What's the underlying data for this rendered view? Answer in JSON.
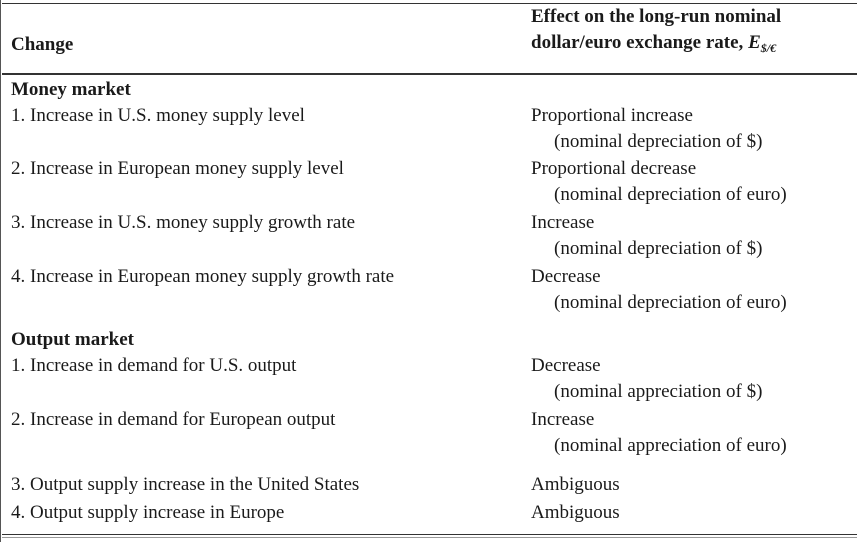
{
  "header": {
    "change_label": "Change",
    "effect_line1": "Effect on the long-run nominal",
    "effect_line2": "dollar/euro exchange rate, ",
    "effect_symbol": "E",
    "effect_subscript": "$/€"
  },
  "sections": [
    {
      "title": "Money market",
      "rows": [
        {
          "change": "1. Increase in U.S. money supply level",
          "effect": "Proportional increase",
          "note": "(nominal depreciation of $)"
        },
        {
          "change": "2. Increase in European money supply level",
          "effect": "Proportional decrease",
          "note": "(nominal depreciation of euro)"
        },
        {
          "change": "3. Increase in U.S. money supply growth rate",
          "effect": "Increase",
          "note": "(nominal depreciation of $)"
        },
        {
          "change": "4. Increase in European money supply growth rate",
          "effect": "Decrease",
          "note": "(nominal depreciation of euro)"
        }
      ]
    },
    {
      "title": "Output market",
      "rows": [
        {
          "change": "1. Increase in demand for U.S. output",
          "effect": "Decrease",
          "note": "(nominal appreciation of $)"
        },
        {
          "change": "2. Increase in demand for European output",
          "effect": "Increase",
          "note": "(nominal appreciation of euro)"
        },
        {
          "change": "3. Output supply increase in the United States",
          "effect": "Ambiguous"
        },
        {
          "change": "4. Output supply increase in Europe",
          "effect": "Ambiguous"
        }
      ]
    }
  ]
}
